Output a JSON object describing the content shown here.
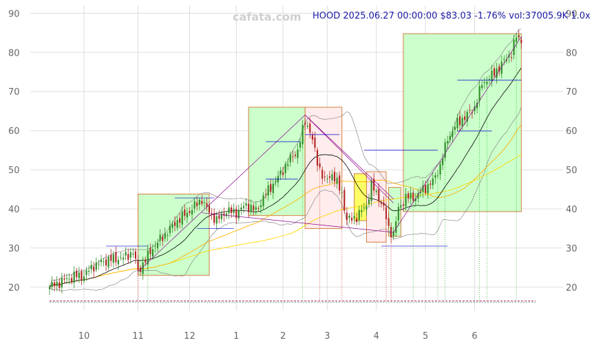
{
  "watermark": "cafata.com",
  "header": {
    "ticker": "HOOD",
    "datetime": "2025.06.27 00:00:00",
    "price": "$83.03",
    "change": "-1.76%",
    "volume": "vol:37005.9K",
    "zoom": "1.0x"
  },
  "colors": {
    "up": "#2e8b22",
    "down": "#b22222",
    "box_green": "#ccffcc",
    "box_pink": "#ffecec",
    "box_yellow": "#ffff66",
    "ma_short": "#000000",
    "ma_mid": "#ffb000",
    "ma_long": "#ffd700",
    "band": "#888888",
    "trend": "#8b008b",
    "level": "#0000cc"
  },
  "chart_data": {
    "type": "candlestick",
    "title": "",
    "xlabel": "",
    "ylabel": "",
    "ylim": [
      14,
      92
    ],
    "xlim": [
      0,
      209
    ],
    "y_ticks": [
      20,
      30,
      40,
      50,
      60,
      70,
      80,
      90
    ],
    "x_ticks": [
      {
        "label": "10",
        "t": 14
      },
      {
        "label": "11",
        "t": 36
      },
      {
        "label": "12",
        "t": 57
      },
      {
        "label": "1",
        "t": 76
      },
      {
        "label": "2",
        "t": 95
      },
      {
        "label": "3",
        "t": 113
      },
      {
        "label": "4",
        "t": 133
      },
      {
        "label": "5",
        "t": 153
      },
      {
        "label": "6",
        "t": 173
      }
    ],
    "grid": true,
    "close_anchors": [
      [
        0,
        20.0
      ],
      [
        5,
        21.5
      ],
      [
        10,
        22.8
      ],
      [
        14,
        23.0
      ],
      [
        18,
        25.5
      ],
      [
        24,
        27.0
      ],
      [
        30,
        27.5
      ],
      [
        34,
        29.0
      ],
      [
        36,
        24.0
      ],
      [
        38,
        26.0
      ],
      [
        42,
        30.0
      ],
      [
        47,
        33.5
      ],
      [
        52,
        37.0
      ],
      [
        57,
        39.5
      ],
      [
        62,
        42.5
      ],
      [
        64,
        40.0
      ],
      [
        68,
        37.0
      ],
      [
        72,
        39.5
      ],
      [
        76,
        39.0
      ],
      [
        80,
        41.0
      ],
      [
        84,
        39.5
      ],
      [
        88,
        44.0
      ],
      [
        93,
        48.0
      ],
      [
        97,
        52.0
      ],
      [
        101,
        55.0
      ],
      [
        104,
        62.5
      ],
      [
        106,
        60.0
      ],
      [
        109,
        52.0
      ],
      [
        112,
        47.0
      ],
      [
        115,
        49.0
      ],
      [
        119,
        44.0
      ],
      [
        121,
        37.0
      ],
      [
        125,
        38.0
      ],
      [
        129,
        41.0
      ],
      [
        131,
        46.0
      ],
      [
        134,
        43.0
      ],
      [
        136,
        40.0
      ],
      [
        138,
        35.0
      ],
      [
        140,
        33.5
      ],
      [
        142,
        40.0
      ],
      [
        145,
        43.0
      ],
      [
        149,
        43.0
      ],
      [
        152,
        45.0
      ],
      [
        156,
        47.0
      ],
      [
        159,
        51.0
      ],
      [
        162,
        58.0
      ],
      [
        166,
        62.0
      ],
      [
        170,
        64.0
      ],
      [
        173,
        66.0
      ],
      [
        176,
        72.0
      ],
      [
        180,
        74.0
      ],
      [
        184,
        77.0
      ],
      [
        188,
        80.0
      ],
      [
        190,
        84.0
      ],
      [
        192,
        83.0
      ]
    ],
    "boxes": [
      {
        "t0": 36,
        "t1": 65,
        "low": 23.0,
        "high": 43.8,
        "kind": "green"
      },
      {
        "t0": 81,
        "t1": 104,
        "low": 38.3,
        "high": 66.0,
        "kind": "green"
      },
      {
        "t0": 104,
        "t1": 119,
        "low": 35.0,
        "high": 66.0,
        "kind": "pink"
      },
      {
        "t0": 124,
        "t1": 129,
        "low": 37.0,
        "high": 49.0,
        "kind": "yellow"
      },
      {
        "t0": 129,
        "t1": 137,
        "low": 31.5,
        "high": 49.5,
        "kind": "pink"
      },
      {
        "t0": 138,
        "t1": 143,
        "low": 33.0,
        "high": 45.5,
        "kind": "green"
      },
      {
        "t0": 144,
        "t1": 192,
        "low": 39.3,
        "high": 84.8,
        "kind": "green"
      }
    ],
    "trendlines": [
      [
        [
          36,
          24.0
        ],
        [
          104,
          64.0
        ]
      ],
      [
        [
          104,
          64.0
        ],
        [
          140,
          42.5
        ]
      ],
      [
        [
          140,
          34.0
        ],
        [
          192,
          84.0
        ]
      ],
      [
        [
          62,
          39.0
        ],
        [
          140,
          34.0
        ]
      ],
      [
        [
          104,
          64.0
        ],
        [
          140,
          41.5
        ]
      ]
    ],
    "levels": [
      {
        "t0": 23,
        "t1": 40,
        "y": 30.5
      },
      {
        "t0": 51,
        "t1": 67,
        "y": 42.8
      },
      {
        "t0": 88,
        "t1": 102,
        "y": 57.2
      },
      {
        "t0": 104,
        "t1": 118,
        "y": 59.0
      },
      {
        "t0": 128,
        "t1": 158,
        "y": 55.0
      },
      {
        "t0": 135,
        "t1": 162,
        "y": 30.5
      },
      {
        "t0": 166,
        "t1": 180,
        "y": 59.9
      },
      {
        "t0": 166,
        "t1": 192,
        "y": 72.9
      },
      {
        "t0": 60,
        "t1": 75,
        "y": 35.0
      },
      {
        "t0": 88,
        "t1": 101,
        "y": 47.6
      }
    ],
    "signals": [
      {
        "t": 36,
        "color": "#cc2222"
      },
      {
        "t": 40,
        "color": "#22aa22"
      },
      {
        "t": 103,
        "color": "#22aa22"
      },
      {
        "t": 110,
        "color": "#cc2222"
      },
      {
        "t": 119,
        "color": "#cc2222"
      },
      {
        "t": 137,
        "color": "#cc2222"
      },
      {
        "t": 139,
        "color": "#cc2222"
      },
      {
        "t": 148,
        "color": "#22aa22"
      },
      {
        "t": 158,
        "color": "#22aa22"
      },
      {
        "t": 161,
        "color": "#22aa22"
      },
      {
        "t": 175,
        "color": "#22aa22"
      },
      {
        "t": 178,
        "color": "#22aa22"
      },
      {
        "t": 190,
        "color": "#22aa22"
      }
    ]
  }
}
